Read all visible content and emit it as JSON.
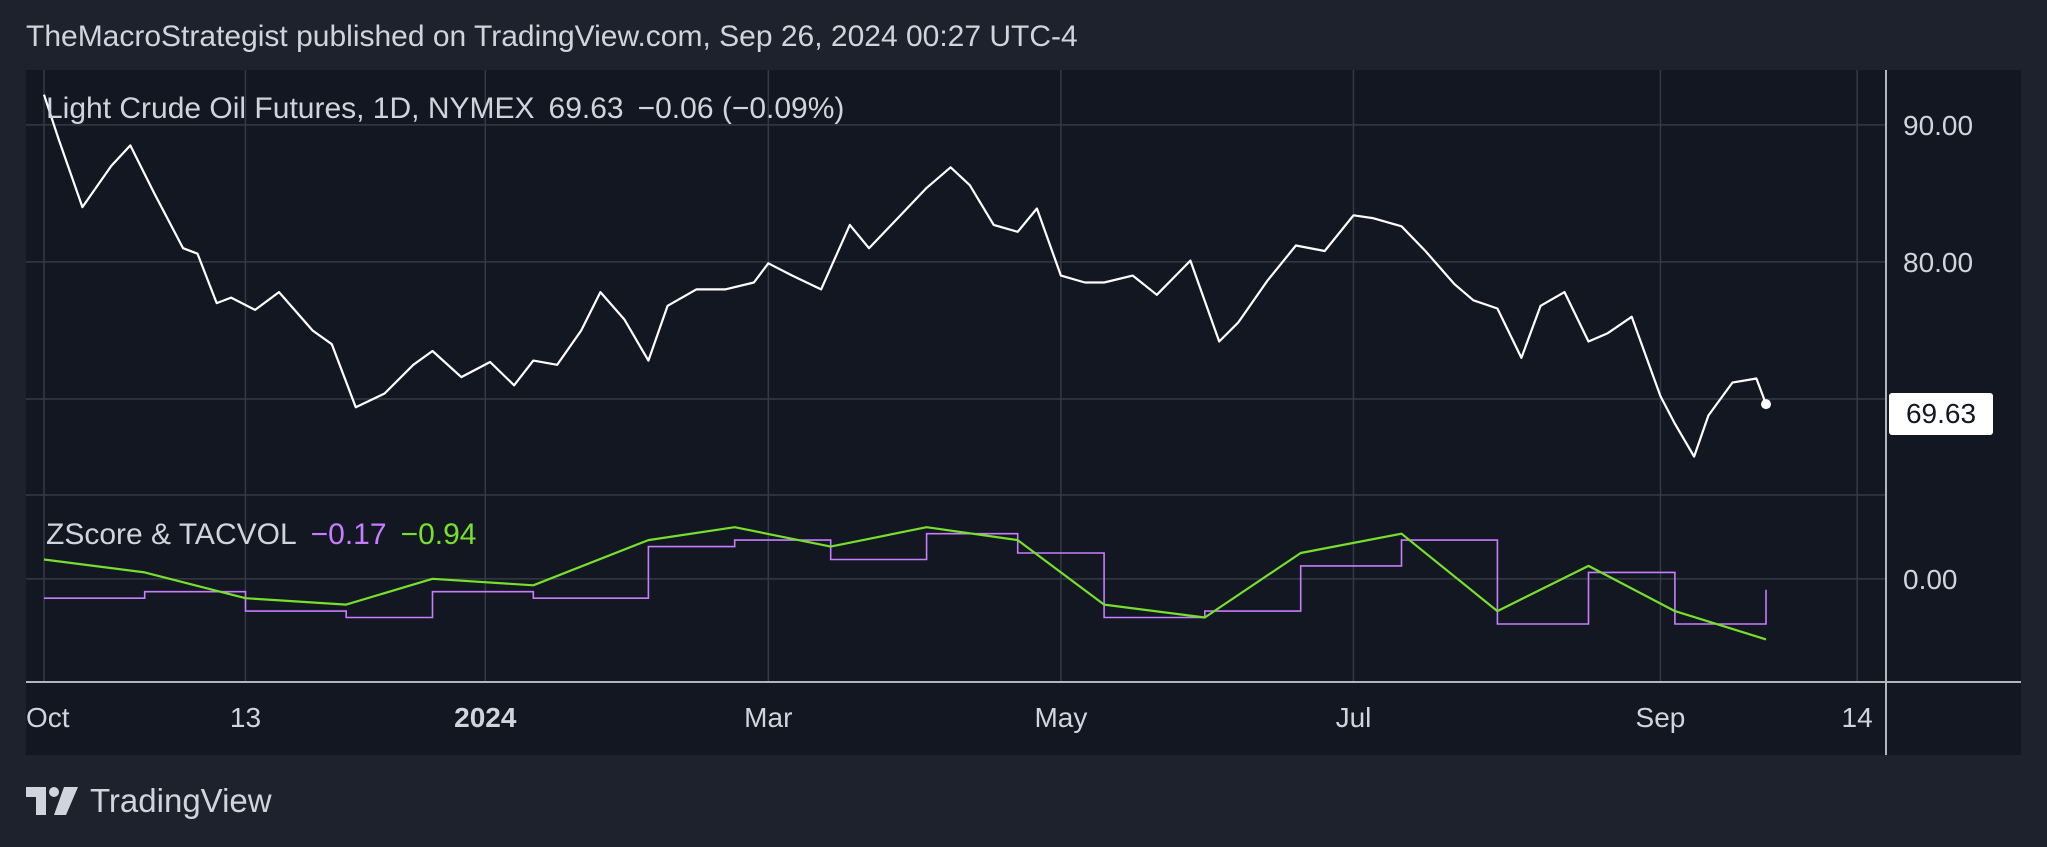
{
  "header": {
    "publisher_line": "TheMacroStrategist published on TradingView.com, Sep 26, 2024 00:27 UTC-4"
  },
  "footer": {
    "brand": "TradingView",
    "logo_icon": "tradingview-logo-icon"
  },
  "colors": {
    "background": "#1e222d",
    "pane": "#131722",
    "price_line": "#ffffff",
    "zscore": "#c77dff",
    "tacvol": "#76e02c",
    "grid": "#363a45",
    "text": "#d1d4dc"
  },
  "legend": {
    "main": {
      "symbol": "Light Crude Oil Futures, 1D, NYMEX",
      "last": "69.63",
      "change": "−0.06 (−0.09%)"
    },
    "indicator": {
      "name": "ZScore & TACVOL",
      "zscore": "−0.17",
      "tacvol": "−0.94"
    }
  },
  "price_axis": {
    "ticks": [
      "90.00",
      "80.00"
    ],
    "last_price_label": "69.63",
    "indicator_tick": "0.00"
  },
  "time_axis": {
    "labels": [
      "Oct",
      "13",
      "2024",
      "Mar",
      "May",
      "Jul",
      "Sep",
      "14"
    ],
    "bold_label": "2024"
  },
  "chart_data": [
    {
      "type": "line",
      "title": "Light Crude Oil Futures, 1D, NYMEX",
      "x_range": [
        "2023-10-02",
        "2024-09-25"
      ],
      "ylim": [
        63,
        94
      ],
      "grid": true,
      "last_value": 69.63,
      "x": [
        "2023-10-02",
        "2023-10-05",
        "2023-10-10",
        "2023-10-16",
        "2023-10-20",
        "2023-10-25",
        "2023-10-31",
        "2023-11-03",
        "2023-11-07",
        "2023-11-10",
        "2023-11-15",
        "2023-11-20",
        "2023-11-27",
        "2023-12-01",
        "2023-12-06",
        "2023-12-12",
        "2023-12-18",
        "2023-12-22",
        "2023-12-28",
        "2024-01-03",
        "2024-01-08",
        "2024-01-12",
        "2024-01-17",
        "2024-01-22",
        "2024-01-26",
        "2024-01-31",
        "2024-02-05",
        "2024-02-09",
        "2024-02-15",
        "2024-02-21",
        "2024-02-27",
        "2024-03-01",
        "2024-03-06",
        "2024-03-12",
        "2024-03-18",
        "2024-03-22",
        "2024-03-28",
        "2024-04-03",
        "2024-04-08",
        "2024-04-12",
        "2024-04-17",
        "2024-04-22",
        "2024-04-26",
        "2024-05-01",
        "2024-05-06",
        "2024-05-10",
        "2024-05-16",
        "2024-05-21",
        "2024-05-28",
        "2024-06-03",
        "2024-06-07",
        "2024-06-13",
        "2024-06-19",
        "2024-06-25",
        "2024-07-01",
        "2024-07-05",
        "2024-07-11",
        "2024-07-16",
        "2024-07-22",
        "2024-07-26",
        "2024-07-31",
        "2024-08-05",
        "2024-08-09",
        "2024-08-14",
        "2024-08-19",
        "2024-08-23",
        "2024-08-28",
        "2024-09-03",
        "2024-09-06",
        "2024-09-10",
        "2024-09-13",
        "2024-09-18",
        "2024-09-23",
        "2024-09-25"
      ],
      "series": [
        {
          "values": [
            92.2,
            89.0,
            84.0,
            87.0,
            88.5,
            85.0,
            81.0,
            80.6,
            77.0,
            77.4,
            76.5,
            77.8,
            75.0,
            74.0,
            69.4,
            70.4,
            72.5,
            73.5,
            71.6,
            72.7,
            71.0,
            72.8,
            72.5,
            75.0,
            77.8,
            75.8,
            72.8,
            76.8,
            78.0,
            78.0,
            78.5,
            79.9,
            79.0,
            78.0,
            82.7,
            81.0,
            83.2,
            85.4,
            86.9,
            85.6,
            82.7,
            82.2,
            83.9,
            79.0,
            78.5,
            78.5,
            79.0,
            77.6,
            80.1,
            74.2,
            75.6,
            78.6,
            81.2,
            80.8,
            83.4,
            83.2,
            82.6,
            80.8,
            78.4,
            77.2,
            76.6,
            73.0,
            76.8,
            77.8,
            74.2,
            74.8,
            76.0,
            70.2,
            68.2,
            65.8,
            68.8,
            71.2,
            71.5,
            69.63
          ]
        }
      ]
    },
    {
      "type": "line",
      "title": "ZScore & TACVOL",
      "ylim": [
        -1.6,
        1.3
      ],
      "x": [
        "2023-10-02",
        "2023-10-23",
        "2023-11-13",
        "2023-12-04",
        "2023-12-22",
        "2024-01-12",
        "2024-02-05",
        "2024-02-23",
        "2024-03-14",
        "2024-04-03",
        "2024-04-22",
        "2024-05-10",
        "2024-05-31",
        "2024-06-20",
        "2024-07-11",
        "2024-07-31",
        "2024-08-19",
        "2024-09-06",
        "2024-09-25"
      ],
      "series": [
        {
          "name": "ZScore",
          "values": [
            -0.3,
            -0.2,
            -0.5,
            -0.6,
            -0.2,
            -0.3,
            0.5,
            0.6,
            0.3,
            0.7,
            0.4,
            -0.6,
            -0.5,
            0.2,
            0.6,
            -0.7,
            0.1,
            -0.7,
            -0.17
          ]
        },
        {
          "name": "TACVOL",
          "values": [
            0.3,
            0.1,
            -0.3,
            -0.4,
            0.0,
            -0.1,
            0.6,
            0.8,
            0.5,
            0.8,
            0.6,
            -0.4,
            -0.6,
            0.4,
            0.7,
            -0.5,
            0.2,
            -0.5,
            -0.94
          ]
        }
      ]
    }
  ]
}
